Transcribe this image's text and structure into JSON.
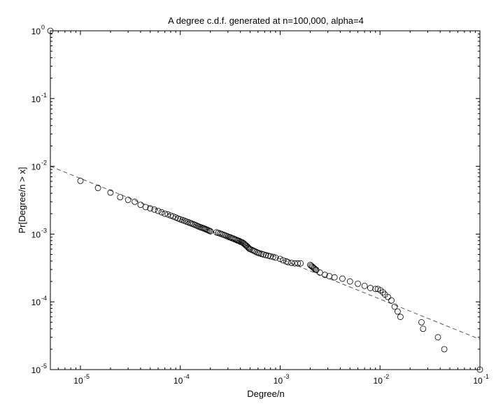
{
  "chart_data": {
    "type": "scatter",
    "title": "A degree c.d.f. generated at n=100,000, alpha=4",
    "xlabel": "Degree/n",
    "ylabel": "Pr[Degree/n > x]",
    "xscale": "log",
    "yscale": "log",
    "xlim": [
      5e-06,
      0.1
    ],
    "ylim": [
      1e-05,
      1
    ],
    "grid": false,
    "x_ticks": [
      {
        "value": 1e-05,
        "base": "10",
        "exp": "-5"
      },
      {
        "value": 0.0001,
        "base": "10",
        "exp": "-4"
      },
      {
        "value": 0.001,
        "base": "10",
        "exp": "-3"
      },
      {
        "value": 0.01,
        "base": "10",
        "exp": "-2"
      },
      {
        "value": 0.1,
        "base": "10",
        "exp": "-1"
      }
    ],
    "y_ticks": [
      {
        "value": 1e-05,
        "base": "10",
        "exp": "-5"
      },
      {
        "value": 0.0001,
        "base": "10",
        "exp": "-4"
      },
      {
        "value": 0.001,
        "base": "10",
        "exp": "-3"
      },
      {
        "value": 0.01,
        "base": "10",
        "exp": "-2"
      },
      {
        "value": 0.1,
        "base": "10",
        "exp": "-1"
      },
      {
        "value": 1,
        "base": "10",
        "exp": "0"
      }
    ],
    "colors": {
      "marker": "#000000",
      "fit_line": "#555555",
      "axes": "#000000"
    },
    "series": [
      {
        "marker": "open-circle",
        "x": [
          5e-06,
          1e-05,
          1.5e-05,
          2e-05,
          2.5e-05,
          3e-05,
          3.5e-05,
          4e-05,
          4.5e-05,
          5e-05,
          5.5e-05,
          6e-05,
          6.5e-05,
          7e-05,
          7.5e-05,
          8e-05,
          8.5e-05,
          9e-05,
          9.5e-05,
          0.0001,
          0.000105,
          0.00011,
          0.000115,
          0.00012,
          0.000125,
          0.00013,
          0.000135,
          0.00014,
          0.000145,
          0.00015,
          0.000155,
          0.00016,
          0.000165,
          0.00017,
          0.000175,
          0.00018,
          0.000185,
          0.00019,
          0.000195,
          0.0002,
          0.00023,
          0.00024,
          0.00025,
          0.00026,
          0.00027,
          0.00028,
          0.00029,
          0.0003,
          0.00031,
          0.00032,
          0.00033,
          0.00034,
          0.00035,
          0.00036,
          0.00037,
          0.00038,
          0.00039,
          0.0004,
          0.00041,
          0.00042,
          0.00043,
          0.00044,
          0.00045,
          0.00046,
          0.00047,
          0.00048,
          0.00049,
          0.0005,
          0.00052,
          0.00054,
          0.00056,
          0.00058,
          0.0006,
          0.00062,
          0.00065,
          0.00068,
          0.00072,
          0.00076,
          0.0008,
          0.00085,
          0.0009,
          0.001,
          0.00107,
          0.00115,
          0.0012,
          0.0013,
          0.0014,
          0.0015,
          0.0016,
          0.002,
          0.00205,
          0.0021,
          0.00215,
          0.0022,
          0.00225,
          0.0023,
          0.0025,
          0.0028,
          0.0031,
          0.0035,
          0.0042,
          0.005,
          0.006,
          0.007,
          0.008,
          0.009,
          0.0095,
          0.0101,
          0.0107,
          0.0112,
          0.012,
          0.013,
          0.014,
          0.015,
          0.016,
          0.026,
          0.027,
          0.038,
          0.044,
          0.1
        ],
        "y": [
          1,
          0.0061,
          0.0048,
          0.0041,
          0.0035,
          0.0032,
          0.003,
          0.0027,
          0.0025,
          0.0024,
          0.0023,
          0.0022,
          0.0021,
          0.002,
          0.00195,
          0.00188,
          0.00182,
          0.00176,
          0.0017,
          0.00165,
          0.00161,
          0.00157,
          0.00153,
          0.0015,
          0.00146,
          0.00143,
          0.0014,
          0.00137,
          0.00134,
          0.00131,
          0.00128,
          0.00126,
          0.00124,
          0.00122,
          0.0012,
          0.00118,
          0.00116,
          0.00114,
          0.00112,
          0.0011,
          0.00106,
          0.00104,
          0.00102,
          0.001,
          0.00098,
          0.00096,
          0.00094,
          0.00092,
          0.0009,
          0.00089,
          0.00087,
          0.00086,
          0.00084,
          0.00083,
          0.00081,
          0.0008,
          0.00079,
          0.00077,
          0.00076,
          0.00075,
          0.00073,
          0.00071,
          0.00069,
          0.00067,
          0.00065,
          0.00063,
          0.00061,
          0.0006,
          0.000585,
          0.00057,
          0.000555,
          0.00054,
          0.00053,
          0.00052,
          0.00051,
          0.0005,
          0.00049,
          0.00048,
          0.00047,
          0.00046,
          0.00045,
          0.00043,
          0.00041,
          0.000395,
          0.000385,
          0.000375,
          0.00037,
          0.00037,
          0.00037,
          0.00035,
          0.00034,
          0.00033,
          0.00032,
          0.00031,
          0.0003,
          0.000295,
          0.00027,
          0.00025,
          0.00024,
          0.00023,
          0.00022,
          0.0002,
          0.000185,
          0.000172,
          0.00016,
          0.000155,
          0.000155,
          0.000148,
          0.000138,
          0.000128,
          0.000118,
          0.000105,
          8.5e-05,
          7.2e-05,
          6e-05,
          5e-05,
          4e-05,
          3e-05,
          2e-05,
          1e-05
        ]
      }
    ],
    "fit_line": {
      "style": "dashed",
      "x": [
        5e-06,
        0.1
      ],
      "y": [
        0.01,
        2.8e-05
      ]
    }
  }
}
